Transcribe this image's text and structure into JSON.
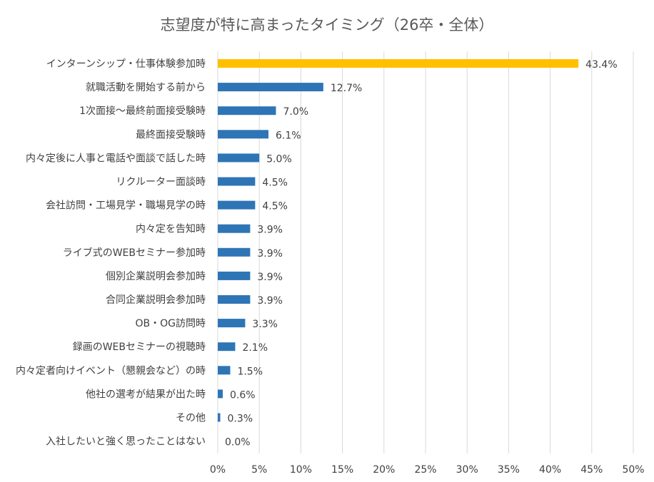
{
  "chart_data": {
    "type": "bar",
    "orientation": "horizontal",
    "title": "志望度が特に高まったタイミング（26卒・全体）",
    "xlabel": "",
    "ylabel": "",
    "xlim": [
      0,
      50
    ],
    "x_ticks": [
      "0%",
      "5%",
      "10%",
      "15%",
      "20%",
      "25%",
      "30%",
      "35%",
      "40%",
      "45%",
      "50%"
    ],
    "x_tick_values": [
      0,
      5,
      10,
      15,
      20,
      25,
      30,
      35,
      40,
      45,
      50
    ],
    "grid": "vertical",
    "legend": "none",
    "colors": {
      "highlight": "#FFC000",
      "default": "#2E75B6",
      "grid": "#D9D9D9",
      "text": "#404040",
      "title": "#595959"
    },
    "categories": [
      "インターンシップ・仕事体験参加時",
      "就職活動を開始する前から",
      "1次面接〜最終前面接受験時",
      "最終面接受験時",
      "内々定後に人事と電話や面談で話した時",
      "リクルーター面談時",
      "会社訪問・工場見学・職場見学の時",
      "内々定を告知時",
      "ライブ式のWEBセミナー参加時",
      "個別企業説明会参加時",
      "合同企業説明会参加時",
      "OB・OG訪問時",
      "録画のWEBセミナーの視聴時",
      "内々定者向けイベント（懇親会など）の時",
      "他社の選考が結果が出た時",
      "その他",
      "入社したいと強く思ったことはない"
    ],
    "values": [
      43.4,
      12.7,
      7.0,
      6.1,
      5.0,
      4.5,
      4.5,
      3.9,
      3.9,
      3.9,
      3.9,
      3.3,
      2.1,
      1.5,
      0.6,
      0.3,
      0.0
    ],
    "data_labels": [
      "43.4%",
      "12.7%",
      "7.0%",
      "6.1%",
      "5.0%",
      "4.5%",
      "4.5%",
      "3.9%",
      "3.9%",
      "3.9%",
      "3.9%",
      "3.3%",
      "2.1%",
      "1.5%",
      "0.6%",
      "0.3%",
      "0.0%"
    ],
    "highlight_index": 0
  }
}
